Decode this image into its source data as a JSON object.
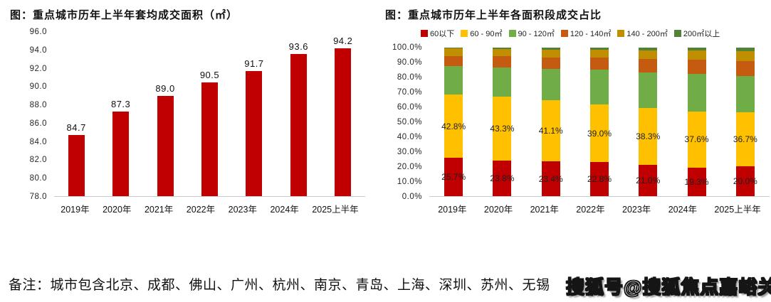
{
  "chart_data": [
    {
      "type": "bar",
      "title": "图：重点城市历年上半年套均成交面积（㎡）",
      "categories": [
        "2019年",
        "2020年",
        "2021年",
        "2022年",
        "2023年",
        "2024年",
        "2025上半年"
      ],
      "values": [
        84.7,
        87.3,
        89.0,
        90.5,
        91.7,
        93.6,
        94.2
      ],
      "data_labels": [
        "84.7",
        "87.3",
        "89.0",
        "90.5",
        "91.7",
        "93.6",
        "94.2"
      ],
      "bar_color": "#C00000",
      "ylim": [
        78.0,
        96.0
      ],
      "yticks": [
        "96.0",
        "94.0",
        "92.0",
        "90.0",
        "88.0",
        "86.0",
        "84.0",
        "82.0",
        "80.0",
        "78.0"
      ],
      "xlabel": "",
      "ylabel": "",
      "grid": false,
      "legend_position": "none"
    },
    {
      "type": "stacked_bar",
      "title": "图：重点城市历年上半年各面积段成交占比",
      "categories": [
        "2019年",
        "2020年",
        "2021年",
        "2022年",
        "2023年",
        "2024年",
        "2025上半年"
      ],
      "series": [
        {
          "name": "60以下",
          "color": "#C00000",
          "values": [
            25.7,
            23.8,
            23.4,
            22.8,
            21.0,
            19.3,
            20.0
          ],
          "labels": [
            "25.7%",
            "23.8%",
            "23.4%",
            "22.8%",
            "21.0%",
            "19.3%",
            "20.0%"
          ]
        },
        {
          "name": "60 - 90㎡",
          "color": "#FFC000",
          "values": [
            42.8,
            43.3,
            41.1,
            39.0,
            38.3,
            37.6,
            36.7
          ],
          "labels": [
            "42.8%",
            "43.3%",
            "41.1%",
            "39.0%",
            "38.3%",
            "37.6%",
            "36.7%"
          ]
        },
        {
          "name": "90 - 120㎡",
          "color": "#70AD47",
          "values": [
            19.3,
            19.7,
            21.0,
            23.2,
            24.2,
            25.6,
            24.3
          ],
          "labels": null,
          "estimated": true
        },
        {
          "name": "120 - 140㎡",
          "color": "#C55A11",
          "values": [
            6.7,
            7.5,
            8.0,
            8.5,
            9.0,
            9.5,
            10.0
          ],
          "labels": null,
          "estimated": true
        },
        {
          "name": "140 - 200㎡",
          "color": "#BF8F00",
          "values": [
            5.0,
            5.0,
            5.0,
            5.0,
            5.5,
            6.0,
            6.5
          ],
          "labels": null,
          "estimated": true
        },
        {
          "name": "200㎡以上",
          "color": "#538135",
          "values": [
            0.5,
            0.7,
            1.5,
            1.5,
            2.0,
            2.0,
            2.5
          ],
          "labels": null,
          "estimated": true
        }
      ],
      "ylim": [
        0,
        100
      ],
      "yticks": [
        "100.0%",
        "90.0%",
        "80.0%",
        "70.0%",
        "60.0%",
        "50.0%",
        "40.0%",
        "30.0%",
        "20.0%",
        "10.0%",
        "0.0%"
      ],
      "xlabel": "",
      "ylabel": "",
      "grid": false,
      "legend_position": "top"
    }
  ],
  "note": "备注：城市包含北京、成都、佛山、广州、杭州、南京、青岛、上海、深圳、苏州、无锡",
  "watermark": "搜狐号@搜狐焦点嘉峪关站"
}
